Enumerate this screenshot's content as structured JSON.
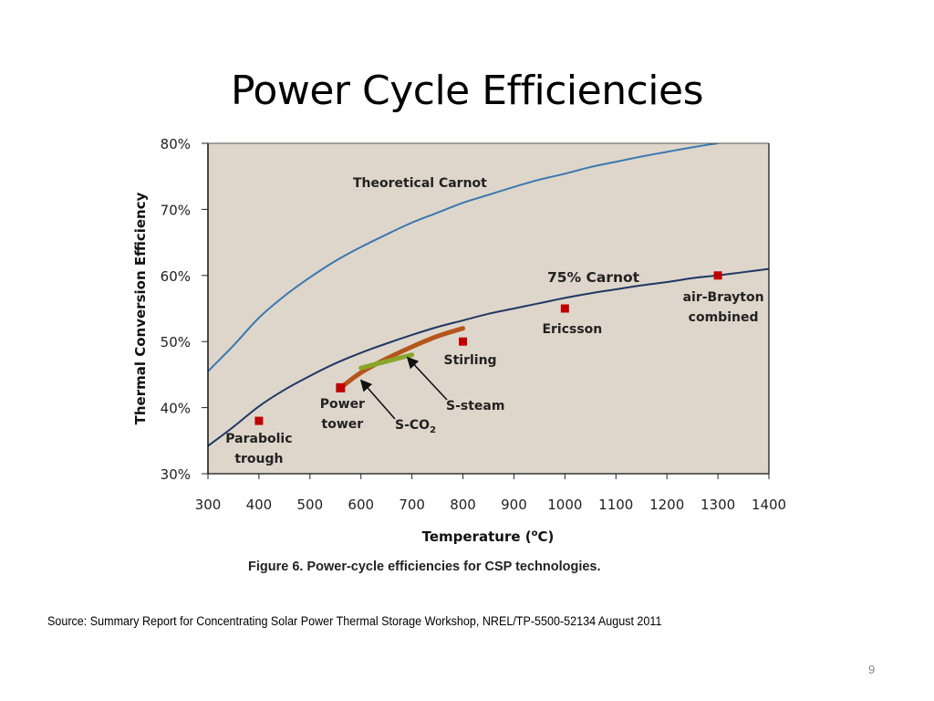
{
  "slide": {
    "title": "Power Cycle Efficiencies",
    "source": "Source: Summary Report for Concentrating Solar Power Thermal Storage Workshop, NREL/TP-5500-52134 August 2011",
    "page_number": "9"
  },
  "chart_data": {
    "type": "line",
    "title": "",
    "caption": "Figure 6. Power-cycle efficiencies for CSP technologies.",
    "xlabel": "Temperature (°C)",
    "xlabel_parts": {
      "pre": "Temperature (",
      "sup": "o",
      "post": "C)"
    },
    "ylabel": "Thermal Conversion Efficiency",
    "xlim": [
      300,
      1400
    ],
    "ylim": [
      30,
      80
    ],
    "x_ticks": [
      300,
      400,
      500,
      600,
      700,
      800,
      900,
      1000,
      1100,
      1200,
      1300,
      1400
    ],
    "x_tick_labels": [
      "300",
      "400",
      "500",
      "600",
      "700",
      "800",
      "900",
      "1000",
      "1100",
      "1200",
      "1300",
      "1400"
    ],
    "y_ticks": [
      30,
      40,
      50,
      60,
      70,
      80
    ],
    "y_tick_labels": [
      "30%",
      "40%",
      "50%",
      "60%",
      "70%",
      "80%"
    ],
    "grid": false,
    "plot_background": "#ded6cb",
    "series": [
      {
        "name": "Theoretical Carnot",
        "kind": "curve",
        "color": "#3a78b0",
        "x": [
          300,
          350,
          400,
          450,
          500,
          550,
          600,
          650,
          700,
          750,
          800,
          850,
          900,
          950,
          1000,
          1050,
          1100,
          1150,
          1200,
          1250,
          1300
        ],
        "y": [
          45.5,
          49.4,
          53.6,
          56.9,
          59.7,
          62.2,
          64.3,
          66.2,
          68.0,
          69.5,
          71.0,
          72.2,
          73.4,
          74.5,
          75.4,
          76.4,
          77.2,
          78.0,
          78.7,
          79.4,
          80.0
        ],
        "label": "Theoretical Carnot"
      },
      {
        "name": "75% Carnot",
        "kind": "curve",
        "color": "#1f3864",
        "x": [
          300,
          350,
          400,
          450,
          500,
          550,
          600,
          650,
          700,
          750,
          800,
          850,
          900,
          950,
          1000,
          1050,
          1100,
          1150,
          1200,
          1250,
          1300,
          1350,
          1400
        ],
        "y": [
          34.2,
          37.1,
          40.2,
          42.7,
          44.8,
          46.7,
          48.3,
          49.7,
          51.0,
          52.2,
          53.2,
          54.2,
          55.0,
          55.8,
          56.6,
          57.3,
          57.9,
          58.5,
          59.0,
          59.6,
          60.0,
          60.5,
          61.0
        ],
        "label": "75% Carnot"
      },
      {
        "name": "S-steam",
        "kind": "band",
        "color": "#b5541c",
        "x": [
          560,
          600,
          650,
          700,
          750,
          800
        ],
        "y": [
          43.0,
          45.3,
          47.4,
          49.2,
          50.8,
          52.0
        ],
        "label": "S-steam"
      },
      {
        "name": "S-CO2",
        "kind": "band",
        "color": "#8aa62a",
        "x": [
          600,
          650,
          700
        ],
        "y": [
          46.0,
          47.0,
          48.0
        ],
        "label": "S-CO2"
      }
    ],
    "points": [
      {
        "name": "Parabolic trough",
        "x": 400,
        "y": 38,
        "color": "#c00000",
        "label_lines": [
          "Parabolic",
          "trough"
        ]
      },
      {
        "name": "Power tower",
        "x": 560,
        "y": 43,
        "color": "#c00000",
        "label_lines": [
          "Power",
          "tower"
        ]
      },
      {
        "name": "Stirling",
        "x": 800,
        "y": 50,
        "color": "#c00000",
        "label_lines": [
          "Stirling"
        ]
      },
      {
        "name": "Ericsson",
        "x": 1000,
        "y": 55,
        "color": "#c00000",
        "label_lines": [
          "Ericsson"
        ]
      },
      {
        "name": "air-Brayton combined",
        "x": 1300,
        "y": 60,
        "color": "#c00000",
        "label_lines": [
          "air-Brayton",
          "combined"
        ]
      }
    ],
    "annotations": {
      "carnot_label": "Theoretical Carnot",
      "carnot75_label": "75% Carnot",
      "s_steam_label": "S-steam",
      "s_co2_label": {
        "pre": "S-CO",
        "sub": "2"
      }
    }
  }
}
